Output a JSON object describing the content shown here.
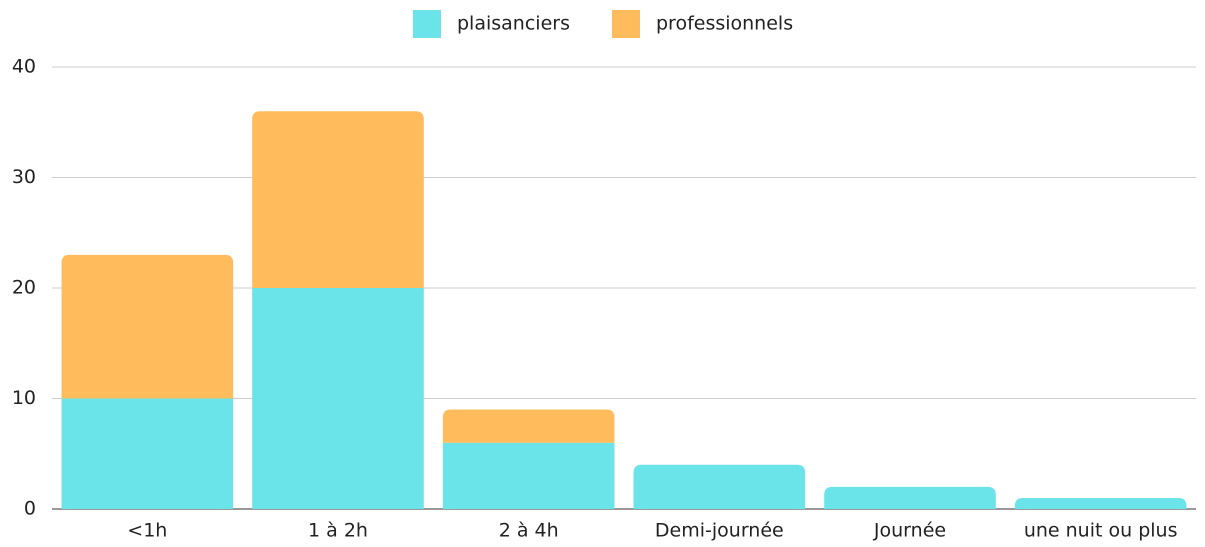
{
  "chart_data": {
    "type": "stacked_bar",
    "categories": [
      "<1h",
      "1 à 2h",
      "2 à 4h",
      "Demi-journée",
      "Journée",
      "une nuit ou plus"
    ],
    "series": [
      {
        "name": "plaisanciers",
        "color": "#6ae4e9",
        "values": [
          10,
          20,
          6,
          4,
          2,
          1
        ]
      },
      {
        "name": "professionnels",
        "color": "#ffbb5c",
        "values": [
          13,
          16,
          3,
          0,
          0,
          0
        ]
      }
    ],
    "ylim": [
      0,
      40
    ],
    "yticks": [
      0,
      10,
      20,
      30,
      40
    ],
    "grid": true,
    "legend": "top"
  }
}
